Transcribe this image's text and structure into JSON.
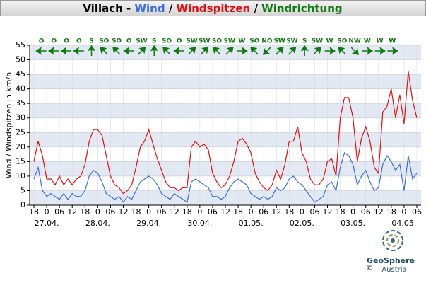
{
  "chart_data": {
    "type": "line",
    "title_parts": [
      {
        "text": "Villach -",
        "color": "#000000"
      },
      {
        "text": "Wind",
        "color": "#3b6fd9"
      },
      {
        "text": "/",
        "color": "#000000"
      },
      {
        "text": "Windspitzen",
        "color": "#e01010"
      },
      {
        "text": "/",
        "color": "#000000"
      },
      {
        "text": "Windrichtung",
        "color": "#107a10"
      }
    ],
    "y_label": "Wind / Windspitzen in km/h",
    "x": [
      0,
      2,
      4,
      6,
      8,
      10,
      12,
      14,
      16,
      18,
      20,
      22,
      24,
      26,
      28,
      30,
      32,
      34,
      36,
      38,
      40,
      42,
      44,
      46,
      48,
      50,
      52,
      54,
      56,
      58,
      60,
      62,
      64,
      66,
      68,
      70,
      72,
      74,
      76,
      78,
      80,
      82,
      84,
      86,
      88,
      90,
      92,
      94,
      96,
      98,
      100,
      102,
      104,
      106,
      108,
      110,
      112,
      114,
      116,
      118,
      120,
      122,
      124,
      126,
      128,
      130,
      132,
      134,
      136,
      138,
      140,
      142,
      144,
      146,
      148,
      150,
      152,
      154,
      156,
      158,
      160,
      162,
      164,
      166,
      168,
      170,
      172,
      174,
      176,
      178,
      180
    ],
    "series": [
      {
        "name": "Windspitzen",
        "color": "#e01010",
        "values": [
          15,
          22,
          17,
          9,
          9,
          7,
          10,
          7,
          9,
          7,
          9,
          10,
          14,
          22,
          26,
          26,
          24,
          17,
          10,
          7,
          6,
          4,
          5,
          7,
          13,
          20,
          22,
          26,
          21,
          16,
          12,
          8,
          6,
          6,
          5,
          6,
          6,
          20,
          22,
          20,
          21,
          19,
          11,
          8,
          6,
          7,
          10,
          15,
          22,
          23,
          21,
          18,
          11,
          8,
          6,
          5,
          7,
          12,
          9,
          14,
          22,
          22,
          27,
          18,
          15,
          9,
          7,
          7,
          9,
          15,
          16,
          10,
          30,
          37,
          37,
          30,
          15,
          23,
          27,
          22,
          13,
          11,
          32,
          34,
          40,
          30,
          38,
          28,
          46,
          36,
          30
        ]
      },
      {
        "name": "Wind",
        "color": "#3b6fd9",
        "values": [
          9,
          13,
          5,
          3,
          4,
          3,
          2,
          4,
          2,
          4,
          3,
          3,
          5,
          10,
          12,
          11,
          8,
          4,
          3,
          2,
          3,
          1,
          3,
          2,
          5,
          8,
          9,
          10,
          9,
          7,
          4,
          3,
          2,
          4,
          3,
          2,
          1,
          8,
          9,
          8,
          7,
          6,
          3,
          3,
          2,
          3,
          6,
          8,
          9,
          8,
          7,
          4,
          3,
          2,
          3,
          2,
          3,
          6,
          5,
          6,
          9,
          10,
          8,
          7,
          5,
          3,
          1,
          2,
          3,
          7,
          8,
          5,
          13,
          18,
          17,
          14,
          7,
          10,
          12,
          8,
          5,
          6,
          14,
          17,
          15,
          12,
          14,
          5,
          17,
          9,
          11
        ]
      }
    ],
    "xlim": [
      -2,
      182
    ],
    "xticks": [
      {
        "value": 0,
        "label": "18"
      },
      {
        "value": 6,
        "label": "0"
      },
      {
        "value": 12,
        "label": "06"
      },
      {
        "value": 18,
        "label": "12"
      },
      {
        "value": 24,
        "label": "18"
      },
      {
        "value": 30,
        "label": "0"
      },
      {
        "value": 36,
        "label": "06"
      },
      {
        "value": 42,
        "label": "12"
      },
      {
        "value": 48,
        "label": "18"
      },
      {
        "value": 54,
        "label": "0"
      },
      {
        "value": 60,
        "label": "06"
      },
      {
        "value": 66,
        "label": "12"
      },
      {
        "value": 72,
        "label": "18"
      },
      {
        "value": 78,
        "label": "0"
      },
      {
        "value": 84,
        "label": "06"
      },
      {
        "value": 90,
        "label": "12"
      },
      {
        "value": 96,
        "label": "18"
      },
      {
        "value": 102,
        "label": "0"
      },
      {
        "value": 108,
        "label": "06"
      },
      {
        "value": 114,
        "label": "12"
      },
      {
        "value": 120,
        "label": "18"
      },
      {
        "value": 126,
        "label": "0"
      },
      {
        "value": 132,
        "label": "06"
      },
      {
        "value": 138,
        "label": "12"
      },
      {
        "value": 144,
        "label": "18"
      },
      {
        "value": 150,
        "label": "0"
      },
      {
        "value": 156,
        "label": "06"
      },
      {
        "value": 162,
        "label": "12"
      },
      {
        "value": 168,
        "label": "18"
      },
      {
        "value": 174,
        "label": "0"
      },
      {
        "value": 180,
        "label": "06"
      }
    ],
    "x_date_labels": [
      {
        "value": 6,
        "label": "27.04."
      },
      {
        "value": 30,
        "label": "28.04."
      },
      {
        "value": 54,
        "label": "29.04."
      },
      {
        "value": 78,
        "label": "30.04."
      },
      {
        "value": 102,
        "label": "01.05."
      },
      {
        "value": 126,
        "label": "02.05."
      },
      {
        "value": 150,
        "label": "03.05."
      },
      {
        "value": 174,
        "label": "04.05."
      }
    ],
    "ylim": [
      0,
      55
    ],
    "yticks": [
      0,
      5,
      10,
      15,
      20,
      25,
      30,
      35,
      40,
      45,
      50,
      55
    ],
    "grid": true,
    "wind_direction": {
      "color": "#107a10",
      "labels": [
        "O",
        "O",
        "O",
        "O",
        "S",
        "SO",
        "SO",
        "O",
        "SW",
        "S",
        "SO",
        "O",
        "SW",
        "SW",
        "SO",
        "SW",
        "W",
        "SO",
        "NO",
        "SW",
        "SW",
        "S",
        "SW",
        "W",
        "SO",
        "NW",
        "W",
        "W",
        "W"
      ]
    },
    "logo": {
      "name": "GeoSphere",
      "sub": "Austria",
      "copyright": "©"
    }
  }
}
